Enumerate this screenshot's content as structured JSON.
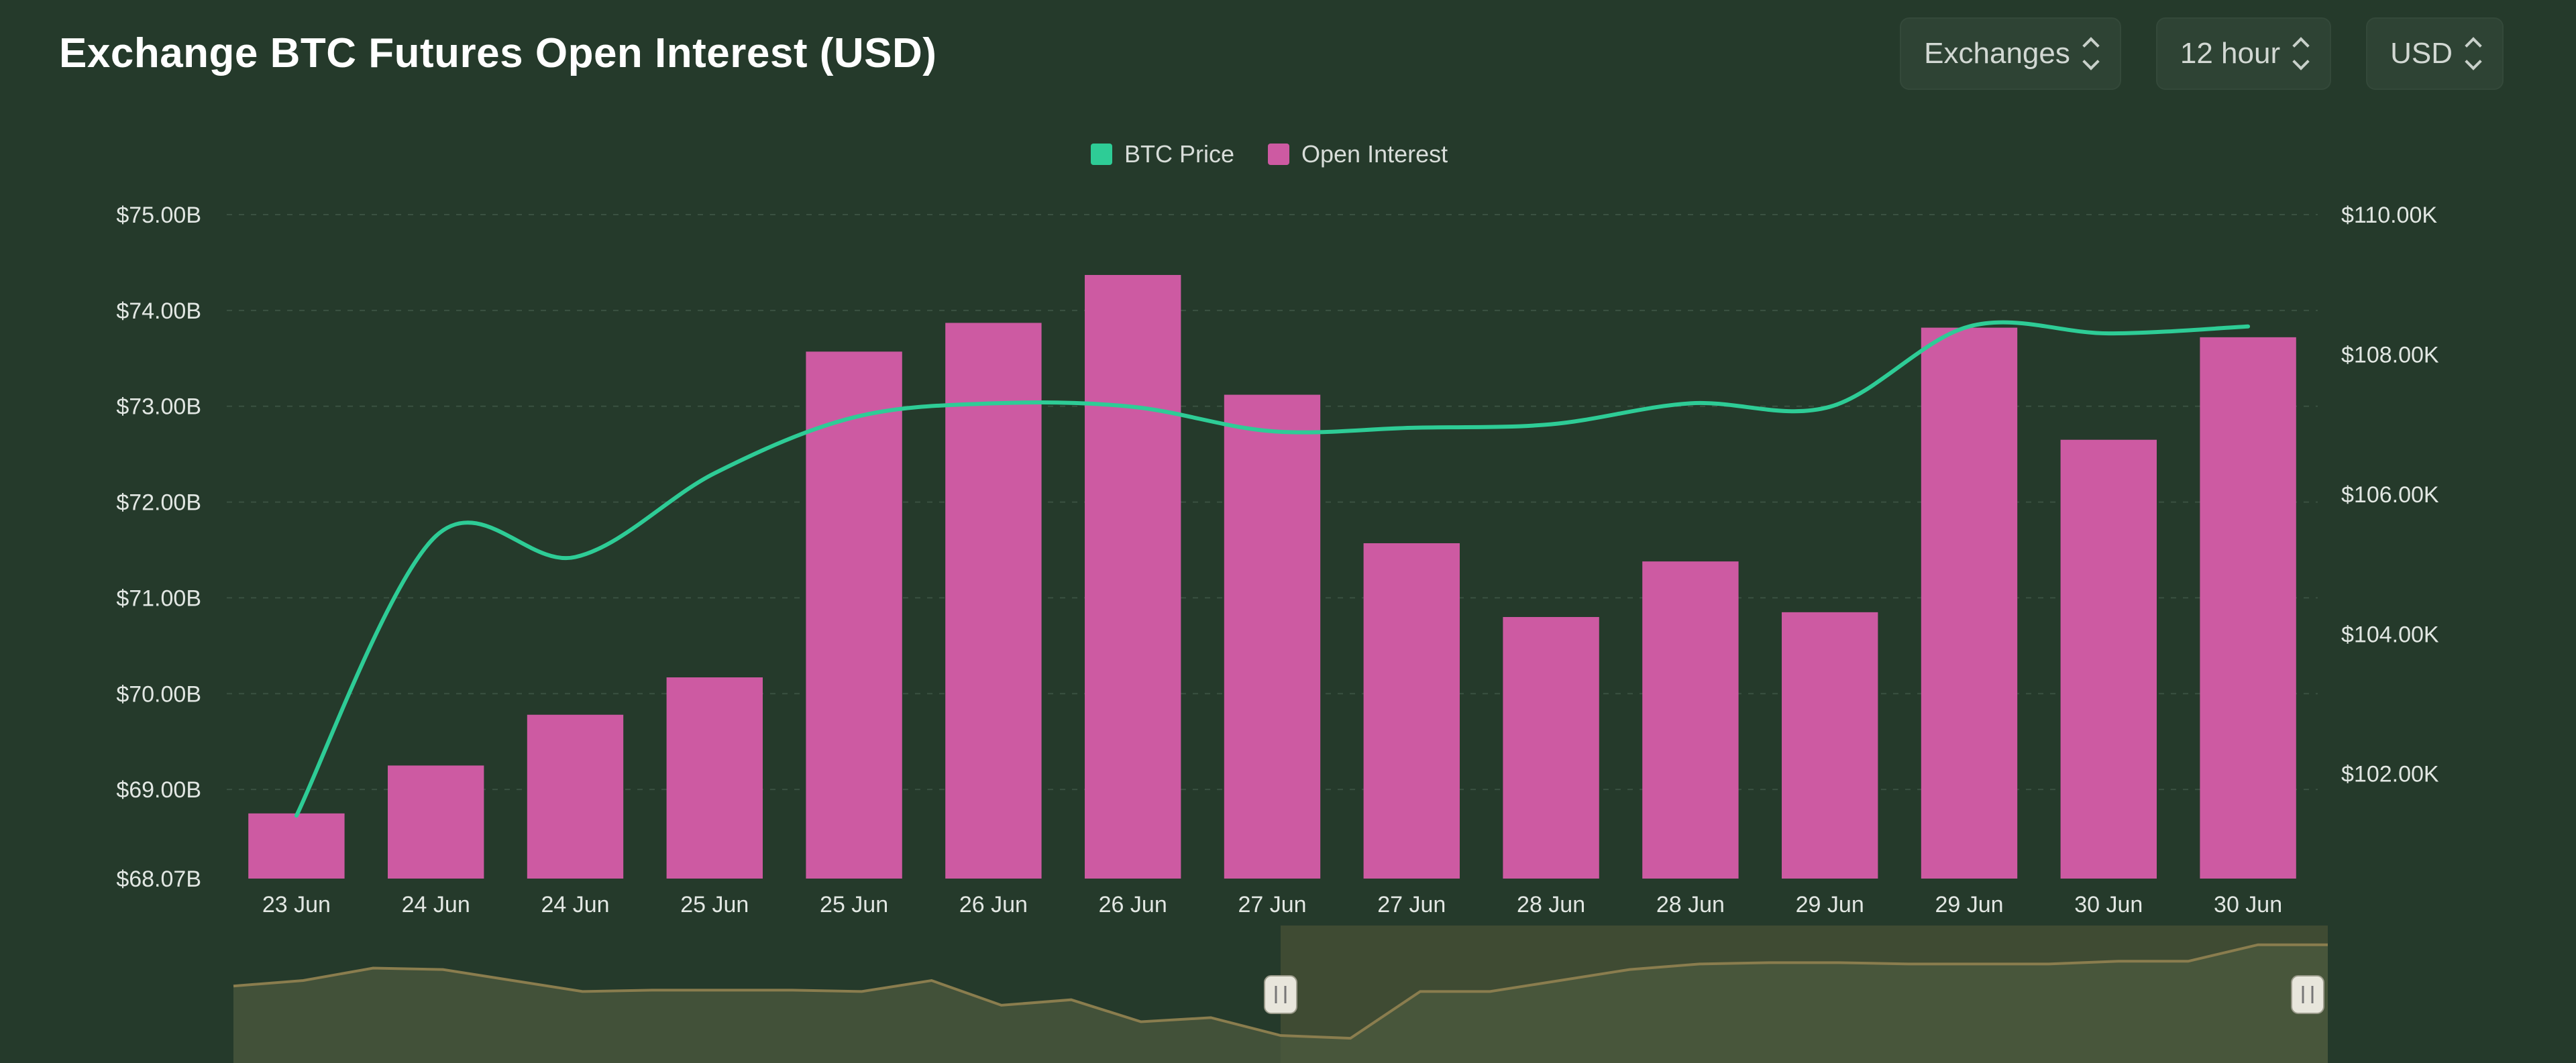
{
  "header": {
    "title": "Exchange BTC Futures Open Interest (USD)",
    "controls": [
      {
        "label": "Exchanges",
        "icon": "chevron-up-down-icon"
      },
      {
        "label": "12 hour",
        "icon": "chevron-up-down-icon"
      },
      {
        "label": "USD",
        "icon": "chevron-up-down-icon"
      }
    ]
  },
  "colors": {
    "background": "#253a2b",
    "btc_price": "#2ecc96",
    "open_interest": "#cd5aa2",
    "navigator_fill": "#4c5a3f",
    "navigator_line": "#8a7d4e",
    "navigator_selected": "#3f4b33"
  },
  "chart_data": {
    "type": "bar",
    "legend": {
      "position": "top-center",
      "entries": [
        "BTC Price",
        "Open Interest"
      ]
    },
    "categories": [
      "23 Jun",
      "24 Jun",
      "24 Jun",
      "25 Jun",
      "25 Jun",
      "26 Jun",
      "26 Jun",
      "27 Jun",
      "27 Jun",
      "28 Jun",
      "28 Jun",
      "29 Jun",
      "29 Jun",
      "30 Jun",
      "30 Jun"
    ],
    "series": [
      {
        "name": "Open Interest",
        "type": "bar",
        "axis": "left",
        "values": [
          68.75,
          69.25,
          69.78,
          70.17,
          73.57,
          73.87,
          74.37,
          73.12,
          71.57,
          70.8,
          71.38,
          70.85,
          73.82,
          72.65,
          73.72
        ]
      },
      {
        "name": "BTC Price",
        "type": "line",
        "axis": "right",
        "values": [
          101400,
          105400,
          105100,
          106300,
          107100,
          107300,
          107250,
          106900,
          106950,
          107000,
          107300,
          107250,
          108400,
          108300,
          108400
        ]
      }
    ],
    "y_left": {
      "ticks": [
        "$75.00B",
        "$74.00B",
        "$73.00B",
        "$72.00B",
        "$71.00B",
        "$70.00B",
        "$69.00B",
        "$68.07B"
      ],
      "range": [
        68.07,
        75.0
      ]
    },
    "y_right": {
      "ticks": [
        "$110.00K",
        "$108.00K",
        "$106.00K",
        "$104.00K",
        "$102.00K"
      ],
      "range": [
        100500,
        110000
      ]
    },
    "grid": true,
    "navigator": {
      "values": [
        0.56,
        0.6,
        0.69,
        0.68,
        0.6,
        0.52,
        0.53,
        0.53,
        0.53,
        0.52,
        0.6,
        0.42,
        0.46,
        0.3,
        0.33,
        0.2,
        0.18,
        0.52,
        0.52,
        0.6,
        0.68,
        0.72,
        0.73,
        0.73,
        0.72,
        0.72,
        0.72,
        0.74,
        0.74,
        0.86,
        0.86
      ],
      "selected_range": [
        0.5,
        1.0
      ]
    }
  }
}
